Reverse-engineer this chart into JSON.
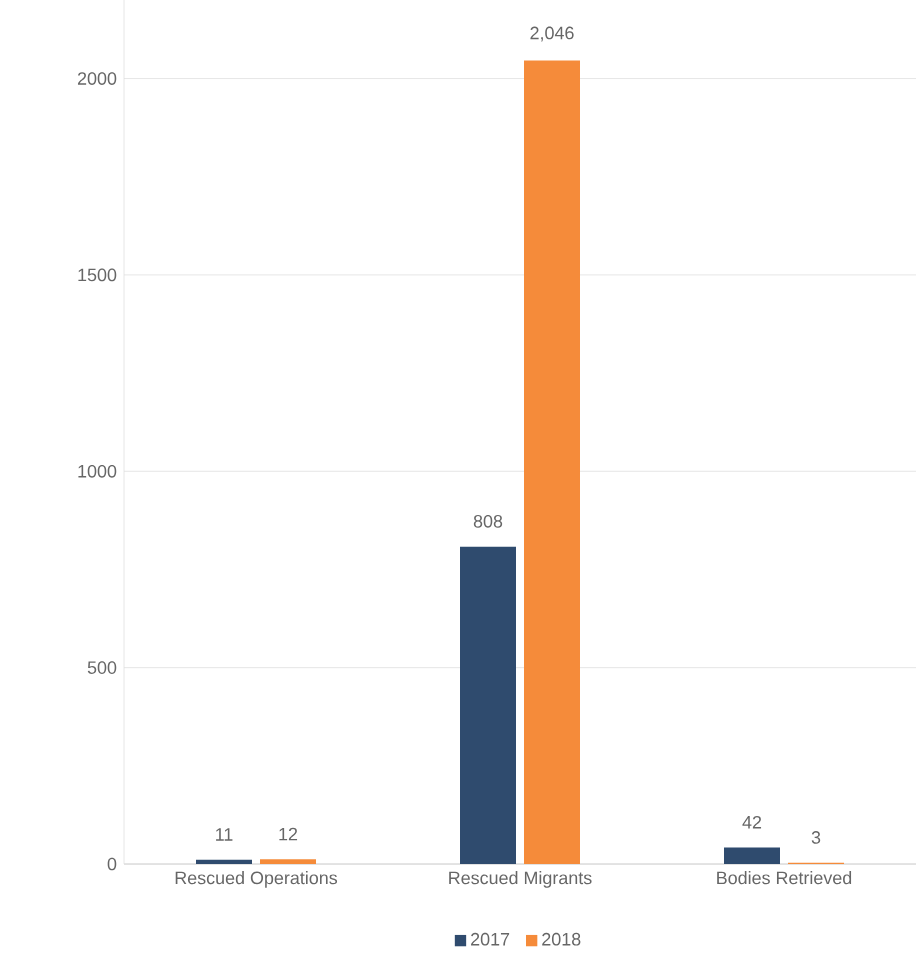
{
  "chart_data": {
    "type": "bar",
    "categories": [
      "Rescued Operations",
      "Rescued Migrants",
      "Bodies Retrieved"
    ],
    "series": [
      {
        "name": "2017",
        "color": "#2f4b6e",
        "values": [
          11,
          808,
          42
        ],
        "value_labels": [
          "11",
          "808",
          "42"
        ]
      },
      {
        "name": "2018",
        "color": "#f58b3a",
        "values": [
          12,
          2046,
          3
        ],
        "value_labels": [
          "12",
          "2,046",
          "3"
        ]
      }
    ],
    "ylim": [
      0,
      2200
    ],
    "yticks": [
      0,
      500,
      1000,
      1500,
      2000
    ],
    "grid": "y",
    "legend": "bottom"
  }
}
